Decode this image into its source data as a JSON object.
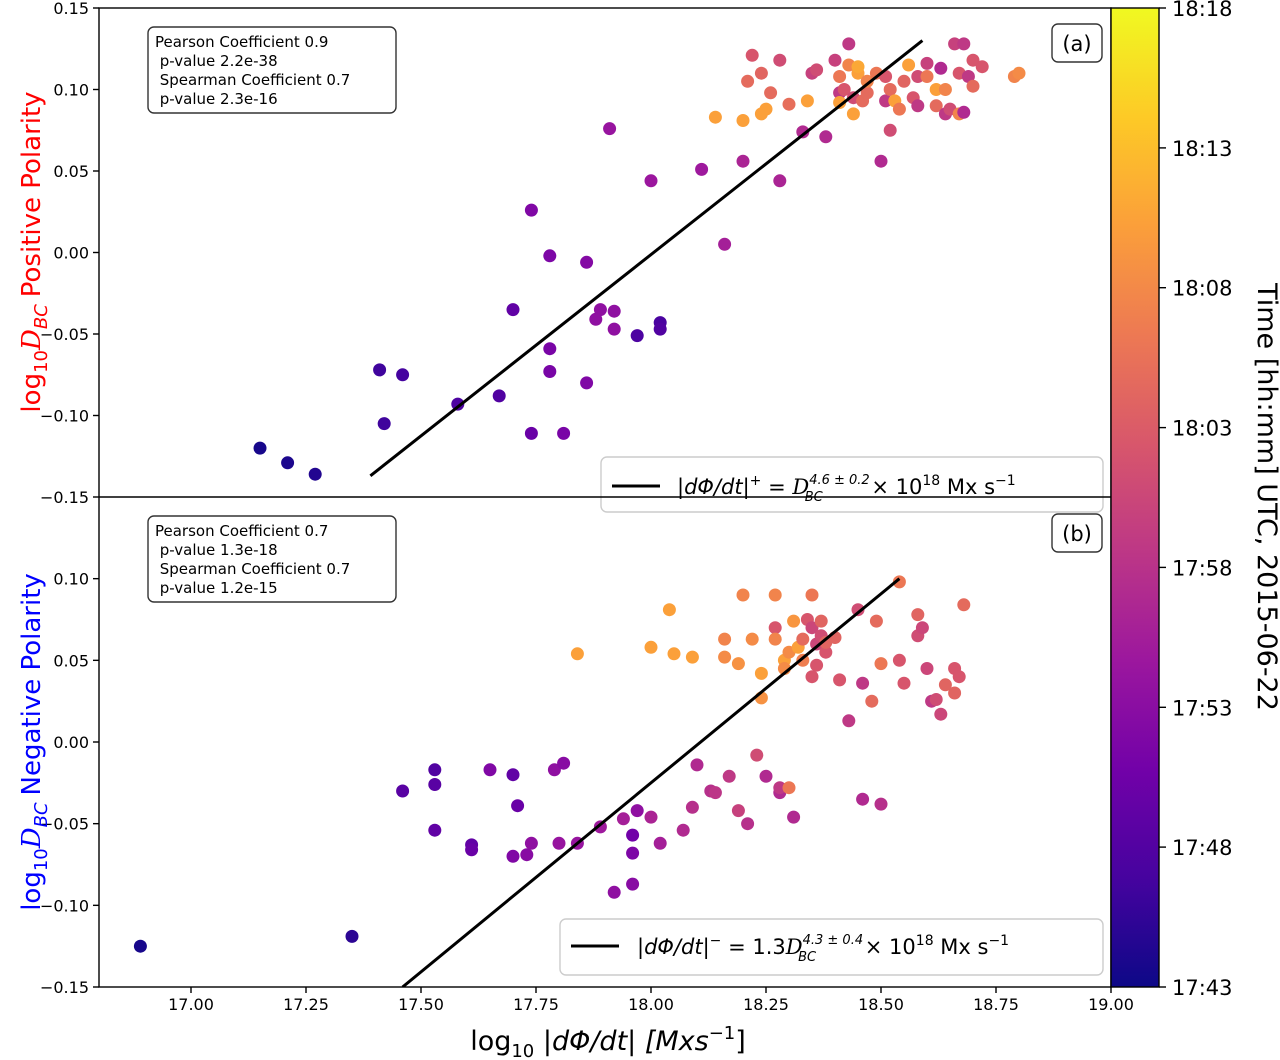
{
  "chart_data": [
    {
      "type": "scatter",
      "panel_label": "(a)",
      "ylabel_prefix": "log",
      "ylabel_sub": "10",
      "ylabel_symbol": "D",
      "ylabel_symbol_sub": "BC",
      "ylabel_suffix": "Positive Polarity",
      "ylabel_color": "#ff0000",
      "xlim": [
        16.8,
        19.0
      ],
      "ylim": [
        -0.15,
        0.15
      ],
      "yticks": [
        -0.15,
        -0.1,
        -0.05,
        0.0,
        0.05,
        0.1,
        0.15
      ],
      "ytick_labels": [
        "−0.15",
        "−0.10",
        "−0.05",
        "0.00",
        "0.05",
        "0.10",
        "0.15"
      ],
      "stats": [
        "Pearson Coefficient 0.9",
        " p-value 2.2e-38",
        " Spearman Coefficient 0.7",
        " p-value 2.3e-16"
      ],
      "legend": {
        "lhs": "|dΦ/dt|",
        "lhs_sup": "+",
        "eq": " = ",
        "coef": "",
        "base": "D",
        "base_sub": "BC",
        "base_sup": "4.6 ± 0.2",
        "times": " × 10",
        "times_sup": "18",
        "unit": " Mx s",
        "unit_sup": "−1"
      },
      "fit_line": {
        "x": [
          17.39,
          18.59
        ],
        "y": [
          -0.137,
          0.13
        ]
      },
      "points": [
        {
          "x": 17.15,
          "y": -0.12,
          "t": 0.02
        },
        {
          "x": 17.21,
          "y": -0.129,
          "t": 0.03
        },
        {
          "x": 17.27,
          "y": -0.136,
          "t": 0.04
        },
        {
          "x": 17.41,
          "y": -0.072,
          "t": 0.1
        },
        {
          "x": 17.42,
          "y": -0.105,
          "t": 0.1
        },
        {
          "x": 17.46,
          "y": -0.075,
          "t": 0.11
        },
        {
          "x": 17.58,
          "y": -0.093,
          "t": 0.13
        },
        {
          "x": 17.67,
          "y": -0.088,
          "t": 0.14
        },
        {
          "x": 17.7,
          "y": -0.035,
          "t": 0.18
        },
        {
          "x": 17.74,
          "y": -0.111,
          "t": 0.2
        },
        {
          "x": 17.74,
          "y": 0.026,
          "t": 0.26
        },
        {
          "x": 17.78,
          "y": -0.002,
          "t": 0.25
        },
        {
          "x": 17.78,
          "y": -0.059,
          "t": 0.24
        },
        {
          "x": 17.78,
          "y": -0.073,
          "t": 0.24
        },
        {
          "x": 17.81,
          "y": -0.111,
          "t": 0.24
        },
        {
          "x": 17.86,
          "y": -0.006,
          "t": 0.27
        },
        {
          "x": 17.86,
          "y": -0.08,
          "t": 0.26
        },
        {
          "x": 17.88,
          "y": -0.041,
          "t": 0.3
        },
        {
          "x": 17.89,
          "y": -0.035,
          "t": 0.3
        },
        {
          "x": 17.92,
          "y": -0.047,
          "t": 0.3
        },
        {
          "x": 17.92,
          "y": -0.036,
          "t": 0.3
        },
        {
          "x": 17.91,
          "y": 0.076,
          "t": 0.32
        },
        {
          "x": 17.97,
          "y": -0.051,
          "t": 0.13
        },
        {
          "x": 18.0,
          "y": 0.044,
          "t": 0.33
        },
        {
          "x": 18.02,
          "y": -0.043,
          "t": 0.12
        },
        {
          "x": 18.02,
          "y": -0.047,
          "t": 0.14
        },
        {
          "x": 18.11,
          "y": 0.051,
          "t": 0.34
        },
        {
          "x": 18.14,
          "y": 0.083,
          "t": 0.78
        },
        {
          "x": 18.16,
          "y": 0.005,
          "t": 0.36
        },
        {
          "x": 18.2,
          "y": 0.056,
          "t": 0.38
        },
        {
          "x": 18.2,
          "y": 0.081,
          "t": 0.78
        },
        {
          "x": 18.21,
          "y": 0.105,
          "t": 0.62
        },
        {
          "x": 18.22,
          "y": 0.121,
          "t": 0.55
        },
        {
          "x": 18.24,
          "y": 0.11,
          "t": 0.6
        },
        {
          "x": 18.24,
          "y": 0.085,
          "t": 0.78
        },
        {
          "x": 18.25,
          "y": 0.088,
          "t": 0.78
        },
        {
          "x": 18.26,
          "y": 0.098,
          "t": 0.62
        },
        {
          "x": 18.28,
          "y": 0.044,
          "t": 0.38
        },
        {
          "x": 18.28,
          "y": 0.118,
          "t": 0.52
        },
        {
          "x": 18.3,
          "y": 0.091,
          "t": 0.63
        },
        {
          "x": 18.33,
          "y": 0.074,
          "t": 0.4
        },
        {
          "x": 18.34,
          "y": 0.093,
          "t": 0.78
        },
        {
          "x": 18.35,
          "y": 0.11,
          "t": 0.48
        },
        {
          "x": 18.36,
          "y": 0.112,
          "t": 0.52
        },
        {
          "x": 18.38,
          "y": 0.071,
          "t": 0.4
        },
        {
          "x": 18.4,
          "y": 0.118,
          "t": 0.48
        },
        {
          "x": 18.41,
          "y": 0.098,
          "t": 0.45
        },
        {
          "x": 18.41,
          "y": 0.092,
          "t": 0.78
        },
        {
          "x": 18.41,
          "y": 0.108,
          "t": 0.66
        },
        {
          "x": 18.42,
          "y": 0.1,
          "t": 0.55
        },
        {
          "x": 18.43,
          "y": 0.115,
          "t": 0.7
        },
        {
          "x": 18.43,
          "y": 0.128,
          "t": 0.45
        },
        {
          "x": 18.44,
          "y": 0.095,
          "t": 0.52
        },
        {
          "x": 18.44,
          "y": 0.085,
          "t": 0.78
        },
        {
          "x": 18.45,
          "y": 0.11,
          "t": 0.78
        },
        {
          "x": 18.45,
          "y": 0.114,
          "t": 0.8
        },
        {
          "x": 18.46,
          "y": 0.093,
          "t": 0.62
        },
        {
          "x": 18.47,
          "y": 0.098,
          "t": 0.62
        },
        {
          "x": 18.47,
          "y": 0.105,
          "t": 0.7
        },
        {
          "x": 18.49,
          "y": 0.11,
          "t": 0.66
        },
        {
          "x": 18.5,
          "y": 0.056,
          "t": 0.4
        },
        {
          "x": 18.51,
          "y": 0.108,
          "t": 0.55
        },
        {
          "x": 18.51,
          "y": 0.093,
          "t": 0.45
        },
        {
          "x": 18.52,
          "y": 0.075,
          "t": 0.52
        },
        {
          "x": 18.52,
          "y": 0.1,
          "t": 0.62
        },
        {
          "x": 18.53,
          "y": 0.093,
          "t": 0.78
        },
        {
          "x": 18.54,
          "y": 0.088,
          "t": 0.66
        },
        {
          "x": 18.55,
          "y": 0.105,
          "t": 0.6
        },
        {
          "x": 18.56,
          "y": 0.115,
          "t": 0.78
        },
        {
          "x": 18.57,
          "y": 0.095,
          "t": 0.55
        },
        {
          "x": 18.58,
          "y": 0.09,
          "t": 0.45
        },
        {
          "x": 18.58,
          "y": 0.108,
          "t": 0.52
        },
        {
          "x": 18.6,
          "y": 0.108,
          "t": 0.66
        },
        {
          "x": 18.6,
          "y": 0.116,
          "t": 0.48
        },
        {
          "x": 18.62,
          "y": 0.1,
          "t": 0.78
        },
        {
          "x": 18.62,
          "y": 0.09,
          "t": 0.62
        },
        {
          "x": 18.63,
          "y": 0.113,
          "t": 0.4
        },
        {
          "x": 18.64,
          "y": 0.1,
          "t": 0.7
        },
        {
          "x": 18.64,
          "y": 0.085,
          "t": 0.45
        },
        {
          "x": 18.65,
          "y": 0.088,
          "t": 0.52
        },
        {
          "x": 18.66,
          "y": 0.128,
          "t": 0.48
        },
        {
          "x": 18.67,
          "y": 0.11,
          "t": 0.55
        },
        {
          "x": 18.67,
          "y": 0.085,
          "t": 0.7
        },
        {
          "x": 18.68,
          "y": 0.086,
          "t": 0.4
        },
        {
          "x": 18.68,
          "y": 0.128,
          "t": 0.45
        },
        {
          "x": 18.69,
          "y": 0.108,
          "t": 0.45
        },
        {
          "x": 18.7,
          "y": 0.118,
          "t": 0.55
        },
        {
          "x": 18.7,
          "y": 0.102,
          "t": 0.62
        },
        {
          "x": 18.72,
          "y": 0.114,
          "t": 0.55
        },
        {
          "x": 18.79,
          "y": 0.108,
          "t": 0.7
        },
        {
          "x": 18.8,
          "y": 0.11,
          "t": 0.72
        }
      ]
    },
    {
      "type": "scatter",
      "panel_label": "(b)",
      "ylabel_prefix": "log",
      "ylabel_sub": "10",
      "ylabel_symbol": "D",
      "ylabel_symbol_sub": "BC",
      "ylabel_suffix": "Negative Polarity",
      "ylabel_color": "#0000ff",
      "xlim": [
        16.8,
        19.0
      ],
      "ylim": [
        -0.15,
        0.15
      ],
      "yticks": [
        -0.15,
        -0.1,
        -0.05,
        0.0,
        0.05,
        0.1
      ],
      "ytick_labels": [
        "−0.15",
        "−0.10",
        "−0.05",
        "0.00",
        "0.05",
        "0.10"
      ],
      "stats": [
        "Pearson Coefficient 0.7",
        " p-value 1.3e-18",
        " Spearman Coefficient 0.7",
        " p-value 1.2e-15"
      ],
      "legend": {
        "lhs": "|dΦ/dt|",
        "lhs_sup": "−",
        "eq": " = ",
        "coef": "1.3",
        "base": "D",
        "base_sub": "BC",
        "base_sup": "4.3 ± 0.4",
        "times": " × 10",
        "times_sup": "18",
        "unit": " Mx s",
        "unit_sup": "−1"
      },
      "fit_line": {
        "x": [
          17.46,
          18.54
        ],
        "y": [
          -0.15,
          0.1
        ]
      },
      "points": [
        {
          "x": 16.89,
          "y": -0.125,
          "t": 0.02
        },
        {
          "x": 17.35,
          "y": -0.119,
          "t": 0.06
        },
        {
          "x": 17.46,
          "y": -0.03,
          "t": 0.16
        },
        {
          "x": 17.53,
          "y": -0.017,
          "t": 0.14
        },
        {
          "x": 17.53,
          "y": -0.026,
          "t": 0.16
        },
        {
          "x": 17.53,
          "y": -0.054,
          "t": 0.18
        },
        {
          "x": 17.61,
          "y": -0.063,
          "t": 0.18
        },
        {
          "x": 17.61,
          "y": -0.066,
          "t": 0.2
        },
        {
          "x": 17.65,
          "y": -0.017,
          "t": 0.26
        },
        {
          "x": 17.7,
          "y": -0.02,
          "t": 0.18
        },
        {
          "x": 17.71,
          "y": -0.039,
          "t": 0.2
        },
        {
          "x": 17.7,
          "y": -0.07,
          "t": 0.26
        },
        {
          "x": 17.73,
          "y": -0.069,
          "t": 0.28
        },
        {
          "x": 17.74,
          "y": -0.062,
          "t": 0.3
        },
        {
          "x": 17.79,
          "y": -0.017,
          "t": 0.3
        },
        {
          "x": 17.81,
          "y": -0.013,
          "t": 0.28
        },
        {
          "x": 17.8,
          "y": -0.062,
          "t": 0.32
        },
        {
          "x": 17.84,
          "y": -0.062,
          "t": 0.32
        },
        {
          "x": 17.84,
          "y": 0.054,
          "t": 0.78
        },
        {
          "x": 17.89,
          "y": -0.052,
          "t": 0.34
        },
        {
          "x": 17.92,
          "y": -0.092,
          "t": 0.3
        },
        {
          "x": 17.94,
          "y": -0.047,
          "t": 0.36
        },
        {
          "x": 17.96,
          "y": -0.057,
          "t": 0.22
        },
        {
          "x": 17.96,
          "y": -0.068,
          "t": 0.25
        },
        {
          "x": 17.96,
          "y": -0.087,
          "t": 0.28
        },
        {
          "x": 17.97,
          "y": -0.042,
          "t": 0.3
        },
        {
          "x": 18.0,
          "y": -0.046,
          "t": 0.38
        },
        {
          "x": 18.0,
          "y": 0.058,
          "t": 0.78
        },
        {
          "x": 18.02,
          "y": -0.062,
          "t": 0.36
        },
        {
          "x": 18.04,
          "y": 0.081,
          "t": 0.78
        },
        {
          "x": 18.05,
          "y": 0.054,
          "t": 0.78
        },
        {
          "x": 18.07,
          "y": -0.054,
          "t": 0.4
        },
        {
          "x": 18.09,
          "y": -0.04,
          "t": 0.42
        },
        {
          "x": 18.09,
          "y": 0.052,
          "t": 0.78
        },
        {
          "x": 18.1,
          "y": -0.014,
          "t": 0.4
        },
        {
          "x": 18.13,
          "y": -0.03,
          "t": 0.42
        },
        {
          "x": 18.14,
          "y": -0.031,
          "t": 0.44
        },
        {
          "x": 18.16,
          "y": 0.063,
          "t": 0.7
        },
        {
          "x": 18.16,
          "y": 0.052,
          "t": 0.72
        },
        {
          "x": 18.17,
          "y": -0.021,
          "t": 0.45
        },
        {
          "x": 18.19,
          "y": -0.042,
          "t": 0.48
        },
        {
          "x": 18.19,
          "y": 0.048,
          "t": 0.74
        },
        {
          "x": 18.2,
          "y": 0.09,
          "t": 0.7
        },
        {
          "x": 18.21,
          "y": -0.05,
          "t": 0.42
        },
        {
          "x": 18.22,
          "y": 0.063,
          "t": 0.72
        },
        {
          "x": 18.23,
          "y": -0.008,
          "t": 0.52
        },
        {
          "x": 18.24,
          "y": 0.042,
          "t": 0.78
        },
        {
          "x": 18.24,
          "y": 0.027,
          "t": 0.74
        },
        {
          "x": 18.25,
          "y": -0.021,
          "t": 0.4
        },
        {
          "x": 18.27,
          "y": 0.09,
          "t": 0.7
        },
        {
          "x": 18.27,
          "y": 0.07,
          "t": 0.55
        },
        {
          "x": 18.27,
          "y": 0.063,
          "t": 0.7
        },
        {
          "x": 18.28,
          "y": -0.031,
          "t": 0.4
        },
        {
          "x": 18.28,
          "y": -0.028,
          "t": 0.45
        },
        {
          "x": 18.29,
          "y": 0.05,
          "t": 0.78
        },
        {
          "x": 18.29,
          "y": 0.045,
          "t": 0.72
        },
        {
          "x": 18.3,
          "y": -0.028,
          "t": 0.66
        },
        {
          "x": 18.3,
          "y": 0.055,
          "t": 0.72
        },
        {
          "x": 18.31,
          "y": -0.046,
          "t": 0.4
        },
        {
          "x": 18.31,
          "y": 0.074,
          "t": 0.75
        },
        {
          "x": 18.32,
          "y": 0.058,
          "t": 0.78
        },
        {
          "x": 18.33,
          "y": 0.05,
          "t": 0.68
        },
        {
          "x": 18.33,
          "y": 0.063,
          "t": 0.62
        },
        {
          "x": 18.34,
          "y": 0.075,
          "t": 0.55
        },
        {
          "x": 18.35,
          "y": 0.07,
          "t": 0.5
        },
        {
          "x": 18.35,
          "y": 0.09,
          "t": 0.66
        },
        {
          "x": 18.35,
          "y": 0.04,
          "t": 0.55
        },
        {
          "x": 18.36,
          "y": 0.047,
          "t": 0.55
        },
        {
          "x": 18.36,
          "y": 0.06,
          "t": 0.5
        },
        {
          "x": 18.37,
          "y": 0.065,
          "t": 0.52
        },
        {
          "x": 18.37,
          "y": 0.074,
          "t": 0.6
        },
        {
          "x": 18.38,
          "y": 0.055,
          "t": 0.55
        },
        {
          "x": 18.38,
          "y": 0.061,
          "t": 0.6
        },
        {
          "x": 18.4,
          "y": 0.064,
          "t": 0.6
        },
        {
          "x": 18.41,
          "y": 0.038,
          "t": 0.55
        },
        {
          "x": 18.43,
          "y": 0.013,
          "t": 0.45
        },
        {
          "x": 18.45,
          "y": 0.081,
          "t": 0.52
        },
        {
          "x": 18.46,
          "y": 0.036,
          "t": 0.45
        },
        {
          "x": 18.46,
          "y": -0.035,
          "t": 0.4
        },
        {
          "x": 18.48,
          "y": 0.025,
          "t": 0.62
        },
        {
          "x": 18.49,
          "y": 0.074,
          "t": 0.62
        },
        {
          "x": 18.5,
          "y": -0.038,
          "t": 0.42
        },
        {
          "x": 18.5,
          "y": 0.048,
          "t": 0.66
        },
        {
          "x": 18.54,
          "y": 0.098,
          "t": 0.66
        },
        {
          "x": 18.54,
          "y": 0.05,
          "t": 0.55
        },
        {
          "x": 18.55,
          "y": 0.036,
          "t": 0.55
        },
        {
          "x": 18.58,
          "y": 0.065,
          "t": 0.52
        },
        {
          "x": 18.58,
          "y": 0.078,
          "t": 0.6
        },
        {
          "x": 18.59,
          "y": 0.07,
          "t": 0.5
        },
        {
          "x": 18.6,
          "y": 0.045,
          "t": 0.5
        },
        {
          "x": 18.61,
          "y": 0.025,
          "t": 0.45
        },
        {
          "x": 18.62,
          "y": 0.026,
          "t": 0.52
        },
        {
          "x": 18.63,
          "y": 0.017,
          "t": 0.5
        },
        {
          "x": 18.64,
          "y": 0.035,
          "t": 0.6
        },
        {
          "x": 18.66,
          "y": 0.045,
          "t": 0.55
        },
        {
          "x": 18.66,
          "y": 0.03,
          "t": 0.6
        },
        {
          "x": 18.67,
          "y": 0.04,
          "t": 0.55
        },
        {
          "x": 18.68,
          "y": 0.084,
          "t": 0.62
        }
      ]
    }
  ],
  "xaxis": {
    "ticks": [
      17.0,
      17.25,
      17.5,
      17.75,
      18.0,
      18.25,
      18.5,
      18.75,
      19.0
    ],
    "tick_labels": [
      "17.00",
      "17.25",
      "17.50",
      "17.75",
      "18.00",
      "18.25",
      "18.50",
      "18.75",
      "19.00"
    ],
    "label_prefix": "log",
    "label_sub": "10",
    "label_main": " |dΦ/dt| [Mxs",
    "label_sup": "−1",
    "label_end": "]"
  },
  "colorbar": {
    "label": "Time [hh:mm] UTC, 2015-06-22",
    "ticks": [
      0.0,
      0.2,
      0.4,
      0.6,
      0.8,
      1.0
    ],
    "tick_labels": [
      "17:43",
      "17:48",
      "17:53",
      "17:58",
      "18:03",
      "18:08",
      "18:13",
      "18:18"
    ],
    "tick_values": [
      0.0,
      0.1429,
      0.2857,
      0.4286,
      0.5714,
      0.7143,
      0.8571,
      1.0
    ],
    "colormap": "plasma",
    "colors": [
      "#0d0887",
      "#46039f",
      "#7201a8",
      "#9c179e",
      "#bd3786",
      "#d8576b",
      "#ed7953",
      "#fb9f3a",
      "#fdca26",
      "#f0f921"
    ]
  },
  "colors": {
    "point_edge": "none",
    "fit_line": "#000000",
    "axis": "#000000"
  }
}
